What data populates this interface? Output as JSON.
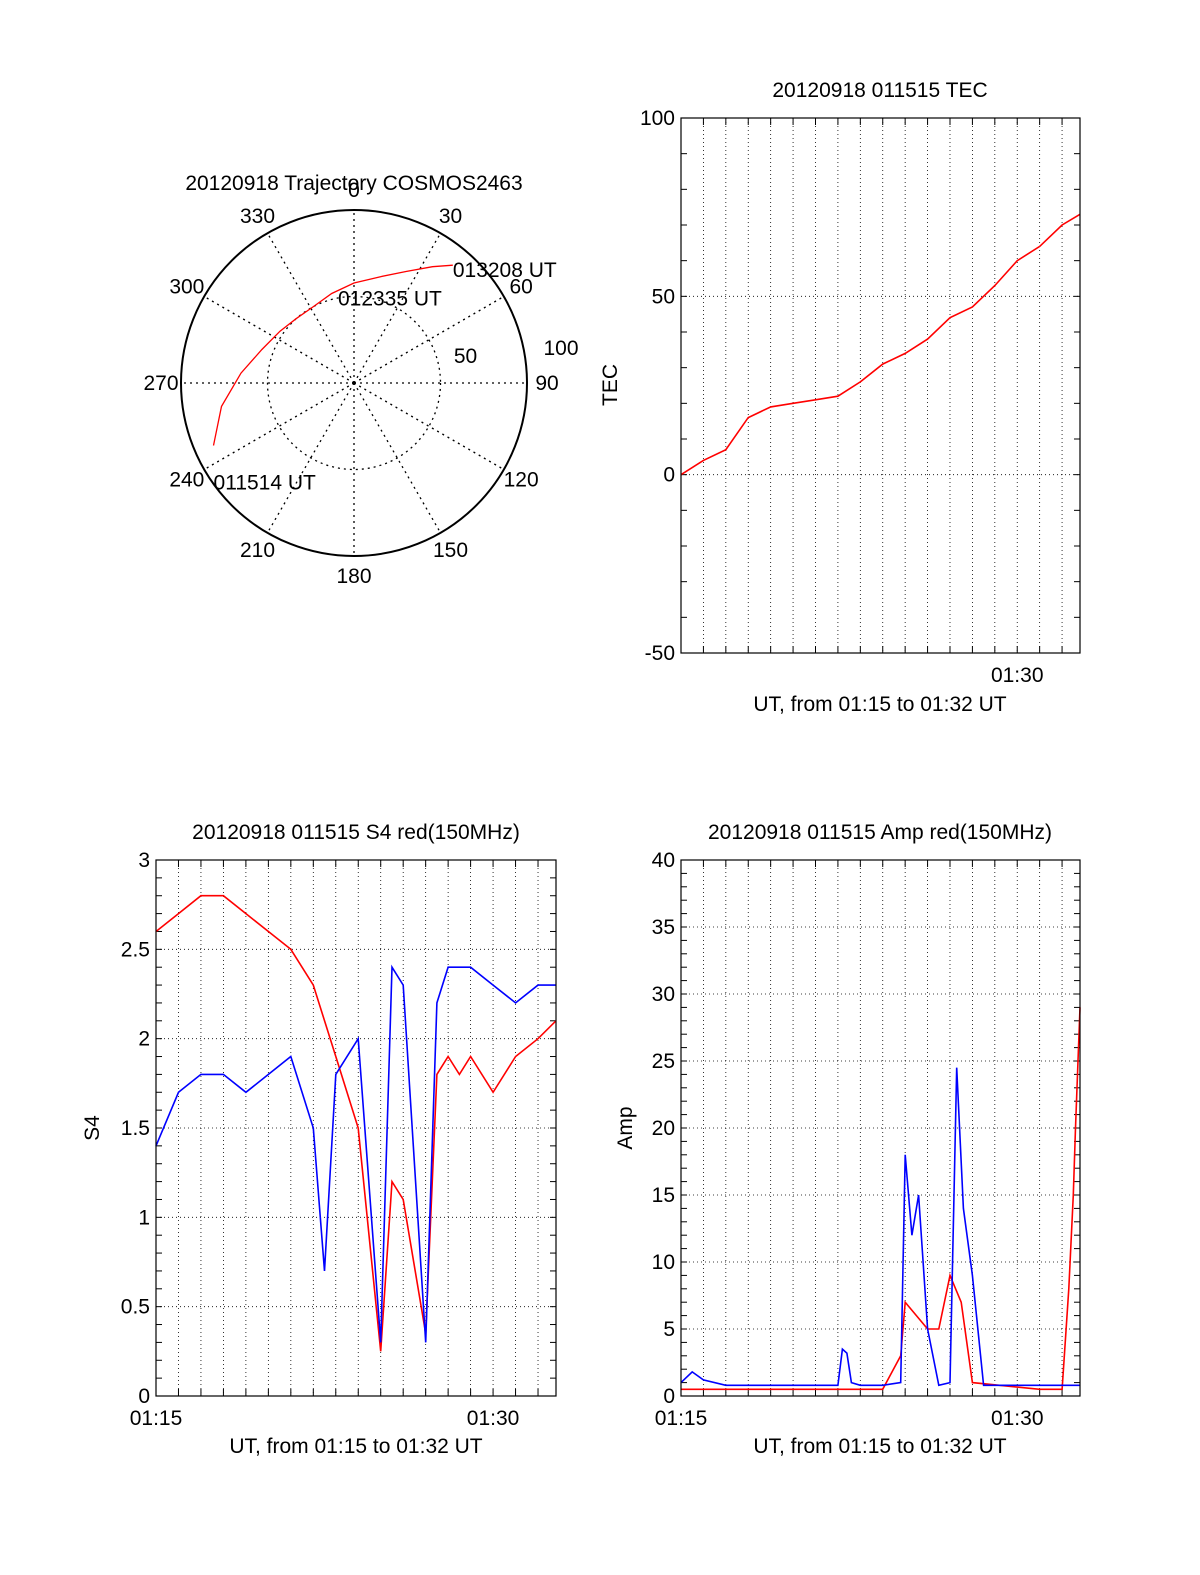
{
  "chart_data": [
    {
      "type": "polar",
      "title": "20120918 Trajectory COSMOS2463",
      "azimuth_labels": [
        "0",
        "30",
        "60",
        "90",
        "120",
        "150",
        "180",
        "210",
        "240",
        "270",
        "300",
        "330"
      ],
      "radial_labels": [
        "50",
        "100"
      ],
      "track_color": "#ff0000",
      "track": [
        {
          "az": 246,
          "el": 10
        },
        {
          "az": 260,
          "el": 20
        },
        {
          "az": 275,
          "el": 31
        },
        {
          "az": 290,
          "el": 39
        },
        {
          "az": 305,
          "el": 43
        },
        {
          "az": 318,
          "el": 45
        },
        {
          "az": 332,
          "el": 45
        },
        {
          "az": 346,
          "el": 42
        },
        {
          "az": 0,
          "el": 38
        },
        {
          "az": 14,
          "el": 33
        },
        {
          "az": 25,
          "el": 26
        },
        {
          "az": 34,
          "el": 17
        },
        {
          "az": 40,
          "el": 10
        }
      ],
      "annotations": [
        {
          "text": "013208 UT",
          "az": 40,
          "el": 10
        },
        {
          "text": "012335 UT",
          "az": 350,
          "el": 48
        },
        {
          "text": "011514 UT",
          "az": 246,
          "el": 10
        }
      ]
    },
    {
      "type": "line",
      "title": "20120918 011515 TEC",
      "ylabel": "TEC",
      "xlabel": "UT, from 01:15 to 01:32 UT",
      "xlim": [
        0,
        17.8
      ],
      "ylim": [
        -50,
        100
      ],
      "yticks": [
        "-50",
        "0",
        "50",
        "100"
      ],
      "xticks": [
        {
          "label": "01:30",
          "x": 15
        }
      ],
      "grid": true,
      "series": [
        {
          "color": "#ff0000",
          "x": [
            0,
            1,
            2,
            3,
            4,
            5,
            6,
            7,
            8,
            9,
            10,
            11,
            12,
            13,
            14,
            15,
            16,
            17,
            17.8
          ],
          "y": [
            0,
            4,
            7,
            16,
            19,
            20,
            21,
            22,
            26,
            31,
            34,
            38,
            44,
            47,
            53,
            60,
            64,
            70,
            73
          ]
        }
      ]
    },
    {
      "type": "line",
      "title": "20120918 011515 S4 red(150MHz)",
      "ylabel": "S4",
      "xlabel": "UT, from 01:15 to 01:32 UT",
      "xlim": [
        0,
        17.8
      ],
      "ylim": [
        0,
        3
      ],
      "yticks": [
        "0",
        "0.5",
        "1",
        "1.5",
        "2",
        "2.5",
        "3"
      ],
      "xticks": [
        {
          "label": "01:15",
          "x": 0
        },
        {
          "label": "01:30",
          "x": 15
        }
      ],
      "grid": true,
      "series": [
        {
          "color": "#ff0000",
          "x": [
            0,
            1,
            2,
            3,
            4,
            5,
            6,
            7,
            8,
            9,
            10,
            10.5,
            11,
            12,
            12.5,
            13,
            13.5,
            14,
            15,
            16,
            17,
            17.8
          ],
          "y": [
            2.6,
            2.7,
            2.8,
            2.8,
            2.7,
            2.6,
            2.5,
            2.3,
            1.9,
            1.5,
            0.25,
            1.2,
            1.1,
            0.35,
            1.8,
            1.9,
            1.8,
            1.9,
            1.7,
            1.9,
            2.0,
            2.1
          ]
        },
        {
          "color": "#0000ff",
          "x": [
            0,
            1,
            2,
            3,
            4,
            5,
            6,
            7,
            7.5,
            8,
            9,
            10,
            10.5,
            11,
            12,
            12.5,
            13,
            14,
            15,
            16,
            17,
            17.8
          ],
          "y": [
            1.4,
            1.7,
            1.8,
            1.8,
            1.7,
            1.8,
            1.9,
            1.5,
            0.7,
            1.8,
            2.0,
            0.3,
            2.4,
            2.3,
            0.3,
            2.2,
            2.4,
            2.4,
            2.3,
            2.2,
            2.3,
            2.3
          ]
        }
      ]
    },
    {
      "type": "line",
      "title": "20120918 011515 Amp red(150MHz)",
      "ylabel": "Amp",
      "xlabel": "UT, from 01:15 to 01:32 UT",
      "xlim": [
        0,
        17.8
      ],
      "ylim": [
        0,
        40
      ],
      "yticks": [
        "0",
        "5",
        "10",
        "15",
        "20",
        "25",
        "30",
        "35",
        "40"
      ],
      "xticks": [
        {
          "label": "01:15",
          "x": 0
        },
        {
          "label": "01:30",
          "x": 15
        }
      ],
      "grid": true,
      "series": [
        {
          "color": "#ff0000",
          "x": [
            0,
            9,
            9.8,
            10,
            11,
            11.5,
            12,
            12.5,
            13,
            16,
            17,
            17.3,
            17.5,
            17.6,
            17.8
          ],
          "y": [
            0.5,
            0.5,
            3,
            7,
            5,
            5,
            9,
            7,
            1,
            0.5,
            0.5,
            8,
            15,
            20,
            29
          ]
        },
        {
          "color": "#0000ff",
          "x": [
            0,
            0.5,
            1,
            2,
            3,
            4,
            5,
            6,
            7,
            7.2,
            7.4,
            7.6,
            8,
            9,
            9.8,
            10,
            10.3,
            10.6,
            11,
            11.5,
            12,
            12.3,
            12.6,
            13,
            13.5,
            14,
            15,
            16,
            17,
            17.8
          ],
          "y": [
            1.0,
            1.8,
            1.2,
            0.8,
            0.8,
            0.8,
            0.8,
            0.8,
            0.8,
            3.5,
            3.2,
            1,
            0.8,
            0.8,
            1,
            18,
            12,
            15,
            5,
            0.8,
            1,
            24.5,
            14,
            9,
            0.8,
            0.8,
            0.8,
            0.8,
            0.8,
            0.8
          ]
        }
      ]
    }
  ]
}
